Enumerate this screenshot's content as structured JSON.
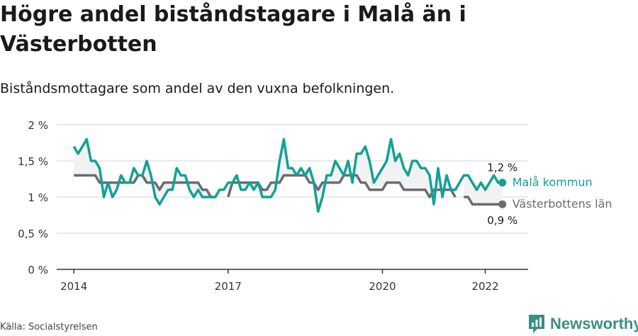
{
  "title": "Högre andel biståndstagare i Malå än i Västerbotten",
  "subtitle": "Biståndsmottagare som andel av den vuxna befolkningen.",
  "source": "Källa: Socialstyrelsen",
  "brand": {
    "name": "Newsworthy",
    "icon": "newsworthy-logo-icon"
  },
  "colors": {
    "mala": "#12a197",
    "lan": "#6b6b6f",
    "fill": "#f2f2f2",
    "grid": "#d4d4d4"
  },
  "chart_data": {
    "type": "line",
    "x_start": "2014-01",
    "x_frequency": "monthly",
    "xlim": [
      "2013-09",
      "2022-11"
    ],
    "ylim": [
      0,
      2
    ],
    "y_ticks": [
      0,
      0.5,
      1,
      1.5,
      2
    ],
    "y_tick_labels": [
      "0 %",
      "0,5 %",
      "1 %",
      "1,5 %",
      "2 %"
    ],
    "x_ticks": [
      "2014-01",
      "2017-01",
      "2020-01",
      "2022-01"
    ],
    "x_tick_labels": [
      "2014",
      "2017",
      "2020",
      "2022"
    ],
    "grid": "horizontal",
    "series": [
      {
        "name": "Malå kommun",
        "end_label": "1,2 %",
        "values": [
          1.7,
          1.6,
          1.7,
          1.8,
          1.5,
          1.5,
          1.4,
          1.0,
          1.2,
          1.0,
          1.1,
          1.3,
          1.2,
          1.2,
          1.4,
          1.3,
          1.3,
          1.5,
          1.3,
          1.0,
          0.9,
          1.0,
          1.1,
          1.1,
          1.4,
          1.3,
          1.3,
          1.1,
          1.0,
          1.1,
          1.0,
          1.0,
          1.0,
          1.0,
          1.1,
          1.1,
          1.2,
          1.2,
          1.3,
          1.1,
          1.1,
          1.2,
          1.1,
          1.2,
          1.0,
          1.0,
          1.0,
          1.1,
          1.5,
          1.8,
          1.4,
          1.4,
          1.3,
          1.4,
          1.3,
          1.4,
          1.2,
          0.8,
          1.0,
          1.3,
          1.3,
          1.5,
          1.4,
          1.3,
          1.5,
          1.2,
          1.6,
          1.6,
          1.7,
          1.5,
          1.2,
          1.3,
          1.4,
          1.5,
          1.8,
          1.5,
          1.6,
          1.4,
          1.3,
          1.5,
          1.5,
          1.4,
          1.4,
          1.3,
          0.9,
          1.4,
          1.0,
          1.3,
          1.1,
          1.1,
          1.2,
          1.3,
          1.3,
          1.2,
          1.1,
          1.2,
          1.1,
          1.2,
          1.3,
          1.2,
          1.2
        ]
      },
      {
        "name": "Västerbottens län",
        "end_label": "0,9 %",
        "values": [
          1.3,
          1.3,
          1.3,
          1.3,
          1.3,
          1.3,
          1.2,
          1.2,
          1.2,
          1.2,
          1.2,
          1.2,
          1.2,
          1.2,
          1.2,
          1.3,
          1.3,
          1.2,
          1.2,
          1.2,
          1.1,
          1.2,
          1.2,
          1.2,
          1.2,
          1.2,
          1.2,
          1.2,
          1.2,
          1.2,
          1.1,
          1.1,
          1.0,
          1.0,
          1.1,
          null,
          1.0,
          1.2,
          1.2,
          1.2,
          1.2,
          1.2,
          1.2,
          1.2,
          1.1,
          1.1,
          1.2,
          1.2,
          1.2,
          1.3,
          1.3,
          1.3,
          1.3,
          1.3,
          1.3,
          1.2,
          1.2,
          1.1,
          1.2,
          1.2,
          1.2,
          1.2,
          1.2,
          1.3,
          1.3,
          1.3,
          1.3,
          1.2,
          1.2,
          1.1,
          1.1,
          1.1,
          1.1,
          1.2,
          1.2,
          1.2,
          1.2,
          1.1,
          1.1,
          1.1,
          1.1,
          1.1,
          1.1,
          1.0,
          1.1,
          1.1,
          1.1,
          1.1,
          1.1,
          1.0,
          null,
          1.0,
          1.0,
          0.9,
          0.9,
          0.9,
          0.9,
          0.9,
          0.9,
          0.9,
          0.9
        ]
      }
    ]
  }
}
